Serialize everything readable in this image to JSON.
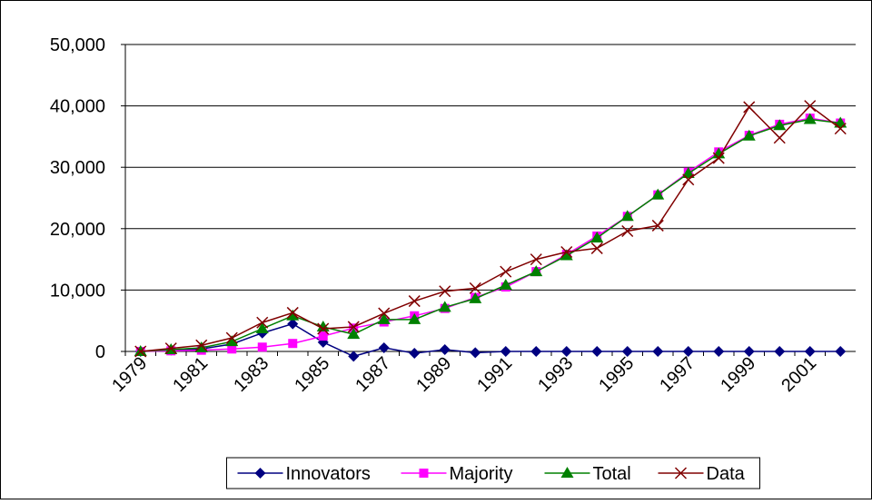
{
  "chart_data": {
    "type": "line",
    "categories": [
      "1979",
      null,
      "1981",
      null,
      "1983",
      null,
      "1985",
      null,
      "1987",
      null,
      "1989",
      null,
      "1991",
      null,
      "1993",
      null,
      "1995",
      null,
      "1997",
      null,
      "1999",
      null,
      "2001",
      null
    ],
    "series": [
      {
        "name": "Innovators",
        "color": "#000080",
        "marker": "diamond",
        "values": [
          0,
          200,
          400,
          1200,
          3000,
          4500,
          1500,
          -800,
          600,
          -300,
          300,
          -200,
          0,
          0,
          0,
          0,
          0,
          0,
          0,
          0,
          0,
          0,
          0,
          0
        ]
      },
      {
        "name": "Majority",
        "color": "#ff00ff",
        "marker": "square",
        "values": [
          0,
          100,
          200,
          400,
          700,
          1300,
          2500,
          3800,
          4800,
          5800,
          7000,
          8800,
          10500,
          13000,
          15800,
          18800,
          22000,
          25500,
          29200,
          32500,
          35200,
          37000,
          38000,
          37200
        ]
      },
      {
        "name": "Total",
        "color": "#008000",
        "marker": "triangle",
        "values": [
          0,
          300,
          600,
          1600,
          3700,
          5800,
          4000,
          2800,
          5200,
          5200,
          7200,
          8600,
          10800,
          13000,
          15600,
          18500,
          22000,
          25500,
          29000,
          32200,
          35100,
          36800,
          37800,
          37200
        ]
      },
      {
        "name": "Data",
        "color": "#800000",
        "marker": "x",
        "values": [
          0,
          500,
          1000,
          2200,
          4700,
          6300,
          3700,
          4000,
          6200,
          8200,
          9800,
          10300,
          13000,
          15000,
          16200,
          16800,
          19600,
          20500,
          28000,
          31500,
          39800,
          34800,
          40000,
          36300
        ]
      }
    ],
    "ylim": [
      0,
      50000
    ],
    "yticks": [
      0,
      {
        "value": 10000,
        "label": "10,000"
      },
      {
        "value": 20000,
        "label": "20,000"
      },
      {
        "value": 30000,
        "label": "30,000"
      },
      {
        "value": 40000,
        "label": "40,000"
      },
      {
        "value": 50000,
        "label": "50,000"
      }
    ],
    "grid": true,
    "legend": "bottom"
  }
}
